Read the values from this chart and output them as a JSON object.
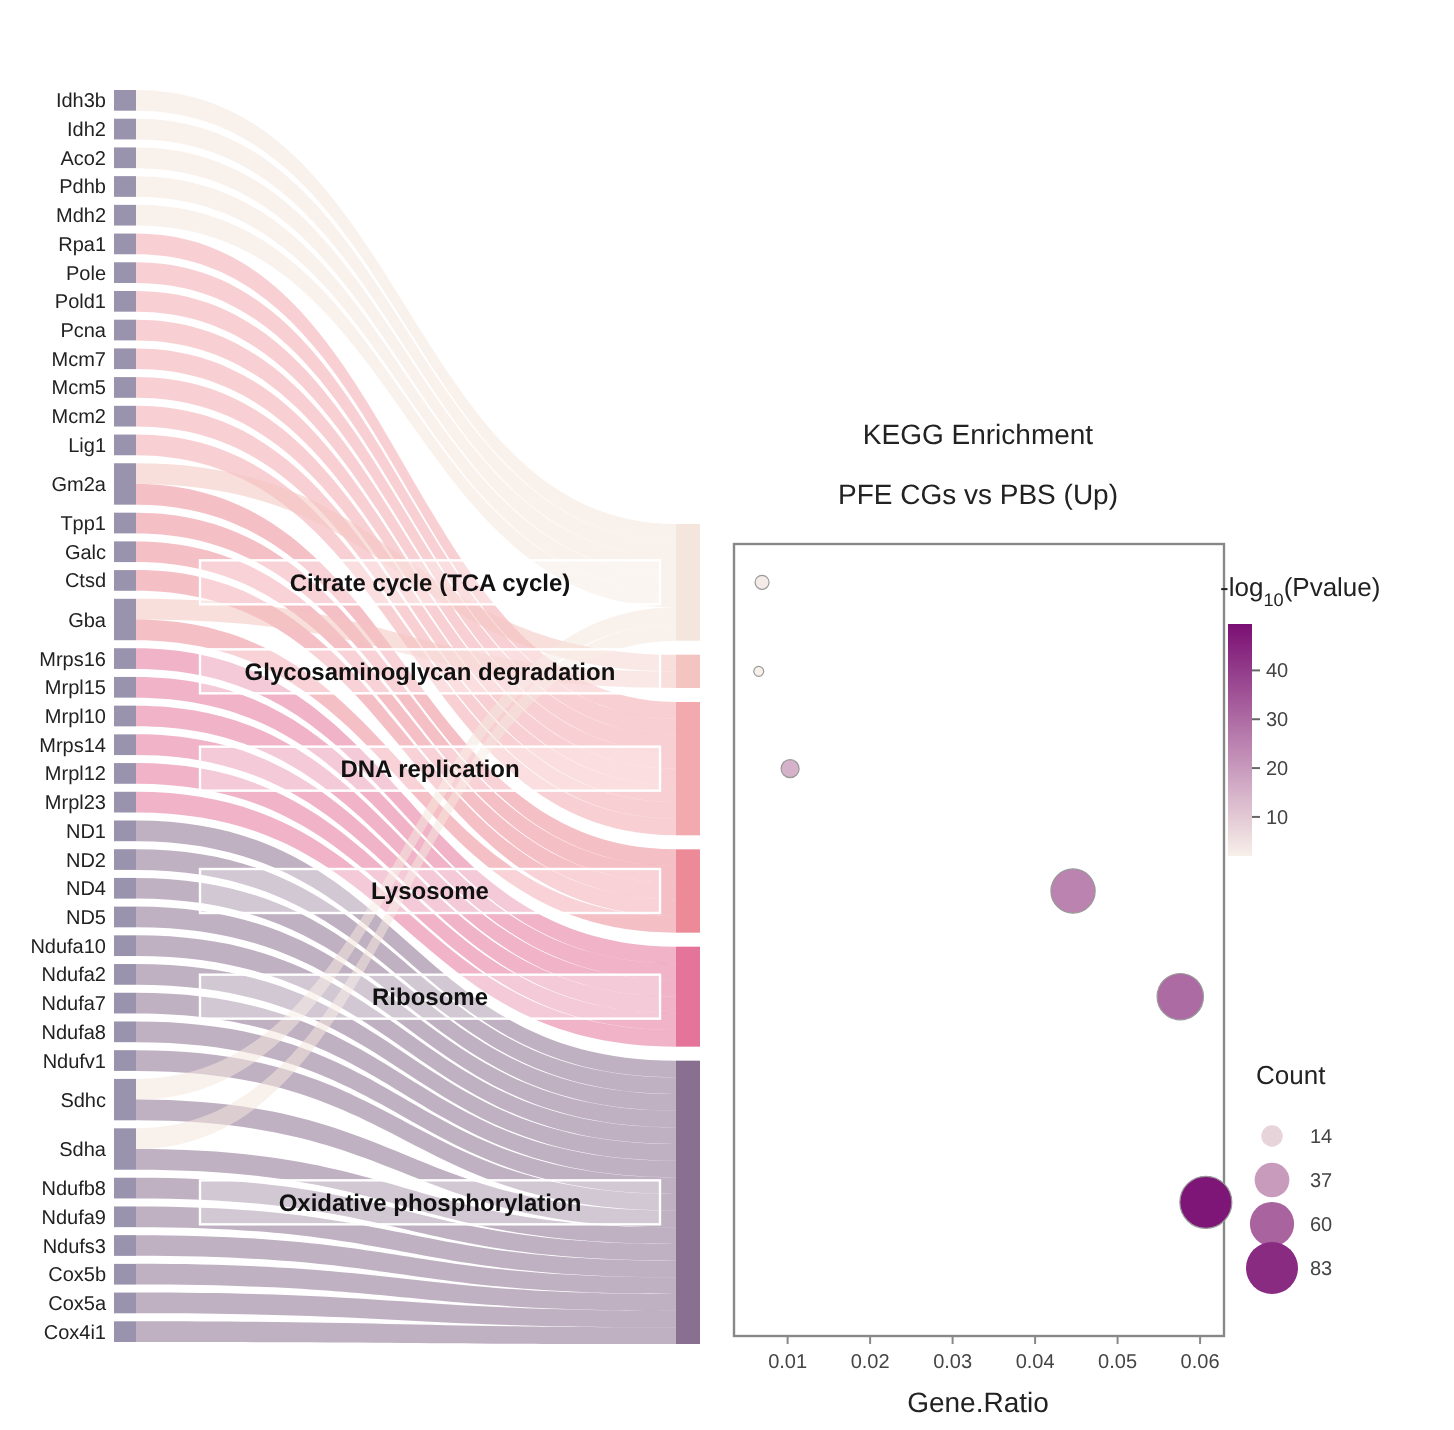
{
  "chart_data": [
    {
      "type": "other",
      "color": "#9a93ad",
      "categories": [
        "Idh3b",
        "Idh2",
        "Aco2",
        "Pdhb",
        "Mdh2",
        "Rpa1",
        "Pole",
        "Pold1",
        "Pcna",
        "Mcm7",
        "Mcm5",
        "Mcm2",
        "Lig1",
        "Gm2a",
        "Tpp1",
        "Galc",
        "Ctsd",
        "Gba",
        "Mrps16",
        "Mrpl15",
        "Mrpl10",
        "Mrps14",
        "Mrpl12",
        "Mrpl23",
        "ND1",
        "ND2",
        "ND4",
        "ND5",
        "Ndufa10",
        "Ndufa2",
        "Ndufa7",
        "Ndufa8",
        "Ndufv1",
        "Sdhc",
        "Sdha",
        "Ndufb8",
        "Ndufa9",
        "Ndufs3",
        "Cox5b",
        "Cox5a",
        "Cox4i1"
      ],
      "colors": [
        "#f4e6dc",
        "#f3c4c0",
        "#f2aaae",
        "#ec8a98",
        "#e4749a",
        "#8a7090"
      ]
    },
    {
      "type": "bubble",
      "orientation": "horizontal",
      "title": "KEGG Enrichment",
      "subtitle": "PFE CGs vs PBS (Up)",
      "xlabel": "Gene.Ratio",
      "legend_title": "Count",
      "clabel": "-log$_{10}$(Pvalue)",
      "categories": [
        "Citrate cycle (TCA cycle)",
        "Glycosaminoglycan degradation",
        "DNA replication",
        "Lysosome",
        "Ribosome",
        "Oxidative phosphorylation"
      ],
      "values": [
        0.0069,
        0.0065,
        0.0103,
        0.0446,
        0.0576,
        0.0607
      ],
      "sizes": [
        6,
        3,
        10,
        60,
        66,
        83
      ],
      "cvalues": [
        3,
        2,
        15,
        25,
        30,
        48
      ],
      "clim": [
        2,
        49.5
      ],
      "cticks": [
        10,
        20,
        30,
        40
      ],
      "size_legend": [
        14,
        37,
        60,
        83
      ],
      "xlim": [
        0.0035,
        0.0629
      ],
      "xticks": [
        0.01,
        0.02,
        0.03,
        0.04,
        0.05,
        0.06
      ],
      "tick_labels": "x",
      "grid": false
    }
  ]
}
